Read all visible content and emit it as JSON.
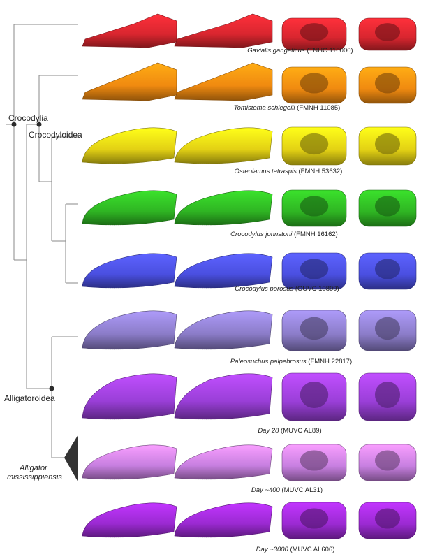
{
  "clades": {
    "crocodylia": "Crocodylia",
    "crocodyloidea": "Crocodyloidea",
    "alligatoroidea": "Alligatoroidea",
    "alligator_line1": "Alligator",
    "alligator_line2": "mississippiensis"
  },
  "specimens": [
    {
      "taxon": "Gavialis gangeticus",
      "specimen": "(TNHC 110000)",
      "color": "#d9262f"
    },
    {
      "taxon": "Tomistoma schlegelii",
      "specimen": "(FMNH 11085)",
      "color": "#f08a10"
    },
    {
      "taxon": "Osteolamus tetraspis",
      "specimen": "(FMNH 53632)",
      "color": "#e3d114"
    },
    {
      "taxon": "Crocodylus johnstoni",
      "specimen": "(FMNH 16162)",
      "color": "#2fb523"
    },
    {
      "taxon": "Crocodylus porosus",
      "specimen": "(OUVC 10899)",
      "color": "#4a4fe0"
    },
    {
      "taxon": "Paleosuchus palpebrosus",
      "specimen": "(FMNH 22817)",
      "color": "#8b7cc8"
    },
    {
      "taxon": "Day 28",
      "specimen": "(MUVC AL89)",
      "color": "#9a3fd8"
    },
    {
      "taxon": "Day ~400",
      "specimen": "(MUVC AL31)",
      "color": "#c77fe0"
    },
    {
      "taxon": "Day ~3000",
      "specimen": "(MUVC AL606)",
      "color": "#9b2ad2"
    }
  ]
}
